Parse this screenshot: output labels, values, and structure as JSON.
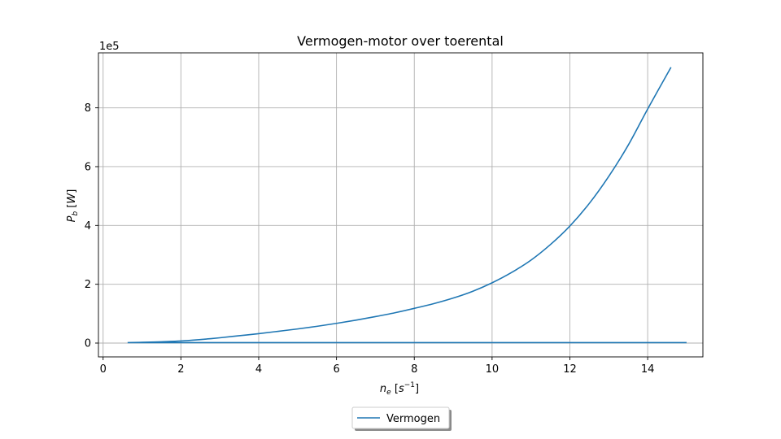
{
  "chart_data": {
    "type": "line",
    "title": "Vermogen-motor over toerental",
    "xlabel": {
      "var": "n",
      "sub": "e",
      "unit_base": "s",
      "unit_sup": "−1"
    },
    "ylabel": {
      "var": "P",
      "sub": "b",
      "unit": "W"
    },
    "y_offset_text": "1e5",
    "xlim": [
      -0.12,
      15.42
    ],
    "ylim": [
      -0.47,
      9.87
    ],
    "y_scale": 100000,
    "xticks": [
      0,
      2,
      4,
      6,
      8,
      10,
      12,
      14
    ],
    "yticks": [
      0,
      2,
      4,
      6,
      8
    ],
    "grid": true,
    "legend": {
      "placement": "bottom-center",
      "label": "Vermogen"
    },
    "series": [
      {
        "name": "Vermogen",
        "color": "#1f77b4",
        "x": [
          0.63,
          1.0,
          1.5,
          2.0,
          2.5,
          3.0,
          3.5,
          4.0,
          4.5,
          5.0,
          5.5,
          6.0,
          6.5,
          7.0,
          7.5,
          8.0,
          8.5,
          9.0,
          9.5,
          10.0,
          10.5,
          11.0,
          11.5,
          12.0,
          12.5,
          13.0,
          13.5,
          14.0,
          14.6,
          15.0,
          0.63
        ],
        "y": [
          1500,
          2500,
          4500,
          7000,
          12000,
          18000,
          25000,
          32000,
          40000,
          48000,
          57000,
          67000,
          78000,
          90000,
          103000,
          118000,
          134000,
          153000,
          176000,
          205000,
          240000,
          282000,
          335000,
          398000,
          475000,
          567000,
          673000,
          796000,
          938000,
          1500,
          1500
        ]
      }
    ]
  }
}
